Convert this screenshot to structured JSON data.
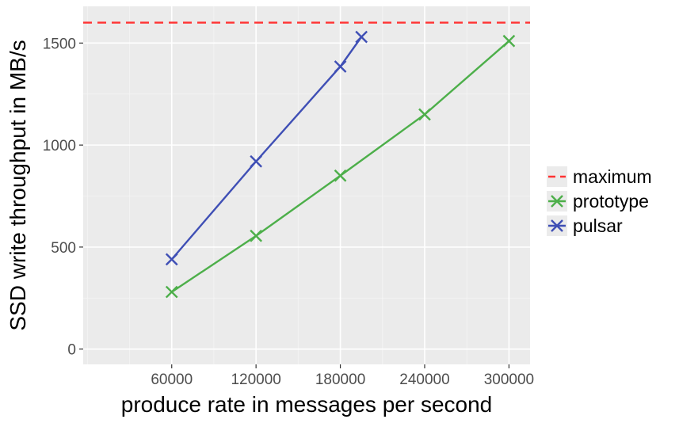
{
  "chart_data": {
    "type": "line",
    "title": "",
    "xlabel": "produce rate in messages per second",
    "ylabel": "SSD write throughput in MB/s",
    "xlim": [
      -3000,
      315000
    ],
    "ylim": [
      -75,
      1680
    ],
    "x_ticks": [
      60000,
      120000,
      180000,
      240000,
      300000
    ],
    "x_tick_labels": [
      "60000",
      "120000",
      "180000",
      "240000",
      "300000"
    ],
    "y_ticks": [
      0,
      500,
      1000,
      1500
    ],
    "y_tick_labels": [
      "0",
      "500",
      "1000",
      "1500"
    ],
    "grid": true,
    "legend_position": "right",
    "reference_lines": [
      {
        "name": "maximum",
        "y": 1600,
        "color": "#ff3333",
        "style": "dashed"
      }
    ],
    "series": [
      {
        "name": "prototype",
        "color": "#4daf4a",
        "marker": "x",
        "x": [
          60000,
          120000,
          180000,
          240000,
          300000
        ],
        "y": [
          280,
          555,
          850,
          1150,
          1510
        ]
      },
      {
        "name": "pulsar",
        "color": "#3f4fb5",
        "marker": "x",
        "x": [
          60000,
          120000,
          180000,
          195000
        ],
        "y": [
          440,
          920,
          1385,
          1530
        ]
      }
    ],
    "legend": [
      {
        "name": "maximum",
        "key": "dash",
        "color": "#ff3333"
      },
      {
        "name": "prototype",
        "key": "x",
        "color": "#4daf4a"
      },
      {
        "name": "pulsar",
        "key": "x",
        "color": "#3f4fb5"
      }
    ]
  }
}
